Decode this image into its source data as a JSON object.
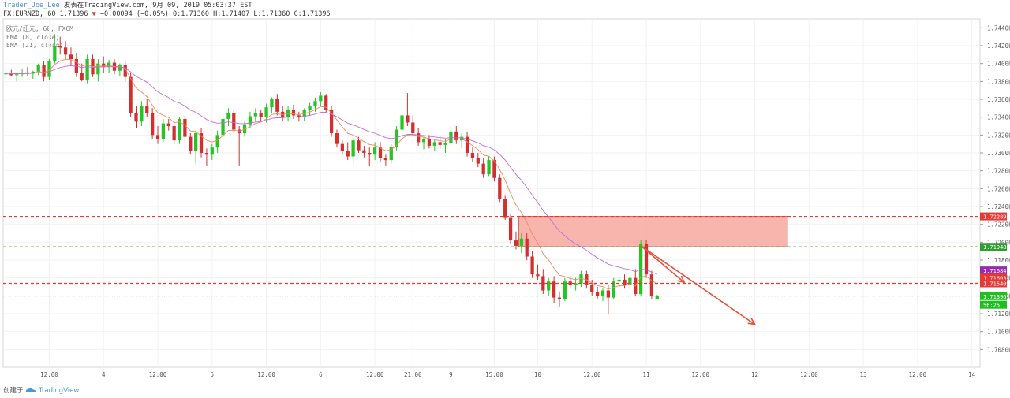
{
  "header": {
    "author": "Trader_Joe_Lee",
    "published": "发表在TradingView.com, 9月 09, 2019 05:03:37 EST",
    "symbol_line_prefix": "FX:EURNZD, 60 1.71396",
    "change": "−0.00094 (−0.05%)",
    "ohlc": "O:1.71360 H:1.71407 L:1.71360 C:1.71396"
  },
  "legend": {
    "title": "欧元/纽元, 60, FXCM",
    "ema_fast": "EMA (8, close)",
    "ema_slow": "EMA (21, close)"
  },
  "footer": {
    "created_label": "创建于",
    "brand": "TradingView"
  },
  "colors": {
    "up": "#26c526",
    "down": "#d32f2f",
    "ema_fast": "#f08a5d",
    "ema_slow": "#c36ae0",
    "zone_fill": "#f6a8a0",
    "zone_stroke": "#d95f55",
    "red_line": "#e53935",
    "green_line": "#2e9e2e",
    "arrow": "#e8503a"
  },
  "chart_data": {
    "type": "candlestick",
    "symbol": "EURNZD",
    "timeframe": "60",
    "ylim": [
      1.706,
      1.745
    ],
    "y_ticks": [
      1.744,
      1.742,
      1.74,
      1.738,
      1.736,
      1.734,
      1.732,
      1.73,
      1.728,
      1.726,
      1.724,
      1.722,
      1.72,
      1.718,
      1.716,
      1.714,
      1.712,
      1.71,
      1.708
    ],
    "y_tick_labels": [
      "1.74400",
      "1.74200",
      "1.74000",
      "1.73800",
      "1.73600",
      "1.73400",
      "1.73200",
      "1.73000",
      "1.72800",
      "1.72600",
      "1.72400",
      "1.72200",
      "1.72000",
      "1.71800",
      "1.71600",
      "1.71400",
      "1.71200",
      "1.71000",
      "1.70800"
    ],
    "x_labels": [
      "12:00",
      "4",
      "12:00",
      "5",
      "12:00",
      "6",
      "12:00",
      "21:00",
      "9",
      "15:00",
      "10",
      "12:00",
      "11",
      "12:00",
      "12",
      "12:00",
      "13",
      "12:00",
      "14"
    ],
    "bar_count": 180,
    "x_label_bars": [
      8,
      18,
      28,
      38,
      48,
      58,
      68,
      75,
      82,
      90,
      98,
      108,
      118,
      128,
      138,
      148,
      158,
      168,
      178
    ],
    "candles": [
      [
        1.7388,
        1.7392,
        1.7384,
        1.7389
      ],
      [
        1.7389,
        1.7393,
        1.7386,
        1.7387
      ],
      [
        1.7387,
        1.739,
        1.738,
        1.7388
      ],
      [
        1.7388,
        1.7394,
        1.7385,
        1.739
      ],
      [
        1.739,
        1.7396,
        1.7386,
        1.7389
      ],
      [
        1.7389,
        1.7392,
        1.7383,
        1.7391
      ],
      [
        1.7391,
        1.74,
        1.7387,
        1.7398
      ],
      [
        1.7398,
        1.7403,
        1.738,
        1.7385
      ],
      [
        1.7385,
        1.7405,
        1.7382,
        1.7403
      ],
      [
        1.7403,
        1.7433,
        1.74,
        1.742
      ],
      [
        1.742,
        1.743,
        1.741,
        1.7418
      ],
      [
        1.7418,
        1.7425,
        1.7405,
        1.741
      ],
      [
        1.741,
        1.7418,
        1.7398,
        1.7405
      ],
      [
        1.7405,
        1.7412,
        1.7385,
        1.739
      ],
      [
        1.739,
        1.74,
        1.738,
        1.7382
      ],
      [
        1.7382,
        1.741,
        1.7378,
        1.7405
      ],
      [
        1.7405,
        1.741,
        1.7385,
        1.7388
      ],
      [
        1.7388,
        1.7405,
        1.738,
        1.74
      ],
      [
        1.74,
        1.7408,
        1.739,
        1.7396
      ],
      [
        1.7396,
        1.7404,
        1.739,
        1.7401
      ],
      [
        1.7401,
        1.7405,
        1.7388,
        1.7392
      ],
      [
        1.7392,
        1.74,
        1.7386,
        1.7398
      ],
      [
        1.7398,
        1.7402,
        1.738,
        1.7385
      ],
      [
        1.7385,
        1.739,
        1.734,
        1.7345
      ],
      [
        1.7345,
        1.7352,
        1.7328,
        1.7335
      ],
      [
        1.7335,
        1.7358,
        1.733,
        1.7352
      ],
      [
        1.7352,
        1.736,
        1.734,
        1.7345
      ],
      [
        1.7345,
        1.735,
        1.7315,
        1.732
      ],
      [
        1.732,
        1.733,
        1.731,
        1.7315
      ],
      [
        1.7315,
        1.7338,
        1.7312,
        1.7333
      ],
      [
        1.7333,
        1.7338,
        1.7325,
        1.733
      ],
      [
        1.733,
        1.7335,
        1.731,
        1.7314
      ],
      [
        1.7314,
        1.734,
        1.731,
        1.7338
      ],
      [
        1.7338,
        1.7342,
        1.7312,
        1.7318
      ],
      [
        1.7318,
        1.7322,
        1.7298,
        1.7302
      ],
      [
        1.7302,
        1.7325,
        1.7288,
        1.7322
      ],
      [
        1.7322,
        1.7328,
        1.7295,
        1.73
      ],
      [
        1.73,
        1.7305,
        1.7285,
        1.7298
      ],
      [
        1.7298,
        1.731,
        1.7292,
        1.7306
      ],
      [
        1.7306,
        1.7325,
        1.73,
        1.732
      ],
      [
        1.732,
        1.7342,
        1.7315,
        1.7338
      ],
      [
        1.7338,
        1.735,
        1.733,
        1.7345
      ],
      [
        1.7345,
        1.7348,
        1.7322,
        1.7326
      ],
      [
        1.7326,
        1.733,
        1.7286,
        1.7322
      ],
      [
        1.7322,
        1.7335,
        1.7318,
        1.7332
      ],
      [
        1.7332,
        1.7346,
        1.7328,
        1.7341
      ],
      [
        1.7341,
        1.735,
        1.7335,
        1.7345
      ],
      [
        1.7345,
        1.7348,
        1.7336,
        1.734
      ],
      [
        1.734,
        1.7355,
        1.7334,
        1.7351
      ],
      [
        1.7351,
        1.7362,
        1.7345,
        1.736
      ],
      [
        1.736,
        1.7366,
        1.7342,
        1.7346
      ],
      [
        1.7346,
        1.7352,
        1.7336,
        1.734
      ],
      [
        1.734,
        1.7352,
        1.7335,
        1.7348
      ],
      [
        1.7348,
        1.7354,
        1.7338,
        1.7342
      ],
      [
        1.7342,
        1.7346,
        1.7335,
        1.734
      ],
      [
        1.734,
        1.735,
        1.7336,
        1.7348
      ],
      [
        1.7348,
        1.7356,
        1.7342,
        1.7352
      ],
      [
        1.7352,
        1.7362,
        1.7346,
        1.7358
      ],
      [
        1.7358,
        1.7368,
        1.7352,
        1.7364
      ],
      [
        1.7364,
        1.7366,
        1.7345,
        1.7348
      ],
      [
        1.7348,
        1.7352,
        1.7318,
        1.7322
      ],
      [
        1.7322,
        1.7326,
        1.7306,
        1.731
      ],
      [
        1.731,
        1.7314,
        1.7298,
        1.7302
      ],
      [
        1.7302,
        1.7312,
        1.7292,
        1.7296
      ],
      [
        1.7296,
        1.7318,
        1.7288,
        1.7314
      ],
      [
        1.7314,
        1.7318,
        1.73,
        1.7303
      ],
      [
        1.7303,
        1.7308,
        1.7295,
        1.73
      ],
      [
        1.73,
        1.7306,
        1.7285,
        1.7298
      ],
      [
        1.7298,
        1.7312,
        1.7292,
        1.7306
      ],
      [
        1.7306,
        1.7312,
        1.729,
        1.7294
      ],
      [
        1.7294,
        1.7298,
        1.7286,
        1.7292
      ],
      [
        1.7292,
        1.731,
        1.7288,
        1.7307
      ],
      [
        1.7307,
        1.733,
        1.7302,
        1.7326
      ],
      [
        1.7326,
        1.7345,
        1.732,
        1.7342
      ],
      [
        1.7342,
        1.7367,
        1.733,
        1.7334
      ],
      [
        1.7334,
        1.7342,
        1.7318,
        1.7322
      ],
      [
        1.7322,
        1.7328,
        1.7308,
        1.7312
      ],
      [
        1.7312,
        1.7318,
        1.7304,
        1.7315
      ],
      [
        1.7315,
        1.732,
        1.7305,
        1.7308
      ],
      [
        1.7308,
        1.7315,
        1.7302,
        1.7312
      ],
      [
        1.7312,
        1.7318,
        1.7305,
        1.7309
      ],
      [
        1.7309,
        1.7315,
        1.73,
        1.7311
      ],
      [
        1.7311,
        1.733,
        1.7308,
        1.7324
      ],
      [
        1.7324,
        1.733,
        1.731,
        1.7314
      ],
      [
        1.7314,
        1.7322,
        1.7305,
        1.7318
      ],
      [
        1.7318,
        1.7324,
        1.7296,
        1.73
      ],
      [
        1.73,
        1.7306,
        1.729,
        1.7294
      ],
      [
        1.7294,
        1.73,
        1.7284,
        1.7288
      ],
      [
        1.7288,
        1.7294,
        1.7272,
        1.7276
      ],
      [
        1.7276,
        1.7296,
        1.7274,
        1.7292
      ],
      [
        1.7292,
        1.7296,
        1.7268,
        1.7272
      ],
      [
        1.7272,
        1.7276,
        1.7245,
        1.7248
      ],
      [
        1.7248,
        1.7252,
        1.7225,
        1.7228
      ],
      [
        1.7228,
        1.7232,
        1.7198,
        1.7202
      ],
      [
        1.7202,
        1.7212,
        1.7192,
        1.7196
      ],
      [
        1.7196,
        1.721,
        1.7188,
        1.7204
      ],
      [
        1.7204,
        1.721,
        1.718,
        1.7184
      ],
      [
        1.7184,
        1.719,
        1.716,
        1.7164
      ],
      [
        1.7164,
        1.7175,
        1.7158,
        1.7162
      ],
      [
        1.7162,
        1.717,
        1.7142,
        1.7146
      ],
      [
        1.7146,
        1.716,
        1.714,
        1.7156
      ],
      [
        1.7156,
        1.7162,
        1.7132,
        1.7138
      ],
      [
        1.7138,
        1.7145,
        1.7128,
        1.7136
      ],
      [
        1.7136,
        1.716,
        1.7134,
        1.7156
      ],
      [
        1.7156,
        1.7162,
        1.7148,
        1.7152
      ],
      [
        1.7152,
        1.716,
        1.7146,
        1.7154
      ],
      [
        1.7154,
        1.7168,
        1.715,
        1.7164
      ],
      [
        1.7164,
        1.7168,
        1.7148,
        1.7152
      ],
      [
        1.7152,
        1.7158,
        1.714,
        1.7144
      ],
      [
        1.7144,
        1.715,
        1.7136,
        1.714
      ],
      [
        1.714,
        1.7148,
        1.7134,
        1.7146
      ],
      [
        1.7146,
        1.7152,
        1.712,
        1.7138
      ],
      [
        1.7138,
        1.716,
        1.7136,
        1.7156
      ],
      [
        1.7156,
        1.7162,
        1.715,
        1.7158
      ],
      [
        1.7158,
        1.7164,
        1.7148,
        1.7152
      ],
      [
        1.7152,
        1.7162,
        1.7148,
        1.716
      ],
      [
        1.716,
        1.717,
        1.714,
        1.7142
      ],
      [
        1.7142,
        1.7202,
        1.714,
        1.7198
      ],
      [
        1.7198,
        1.7202,
        1.716,
        1.7164
      ],
      [
        1.7164,
        1.7168,
        1.7136,
        1.714
      ],
      [
        1.7136,
        1.7141,
        1.7136,
        1.714
      ]
    ],
    "ema_fast": [],
    "ema_slow": [],
    "annotations": {
      "resistance_zone": {
        "price_top": 1.72289,
        "price_bottom": 1.71948
      },
      "lines": [
        {
          "price": 1.72289,
          "label": "1.72289",
          "style": "dashed",
          "color": "red"
        },
        {
          "price": 1.71948,
          "label": "1.71948",
          "style": "dashed",
          "color": "green"
        },
        {
          "price": 1.7154,
          "label": "1.71540",
          "style": "dashed",
          "color": "red"
        },
        {
          "price": 1.71396,
          "label": "1.71396",
          "style": "dotted",
          "color": "green"
        }
      ],
      "price_tags": [
        {
          "price": 1.71684,
          "label": "1.71684",
          "color": "purple"
        },
        {
          "price": 1.71603,
          "label": "1.71603",
          "color": "red"
        },
        {
          "price": 1.7154,
          "label": "1.71540",
          "color": "red"
        },
        {
          "price": 1.71396,
          "label": "1.71396",
          "color": "green"
        },
        {
          "price": 1.713,
          "label": "56:25",
          "color": "green"
        }
      ],
      "arrows": [
        {
          "from_bar": 117,
          "from_price": 1.7196,
          "to_bar": 125,
          "to_price": 1.7155
        },
        {
          "from_bar": 117,
          "from_price": 1.7196,
          "to_bar": 138,
          "to_price": 1.7108
        }
      ]
    }
  }
}
